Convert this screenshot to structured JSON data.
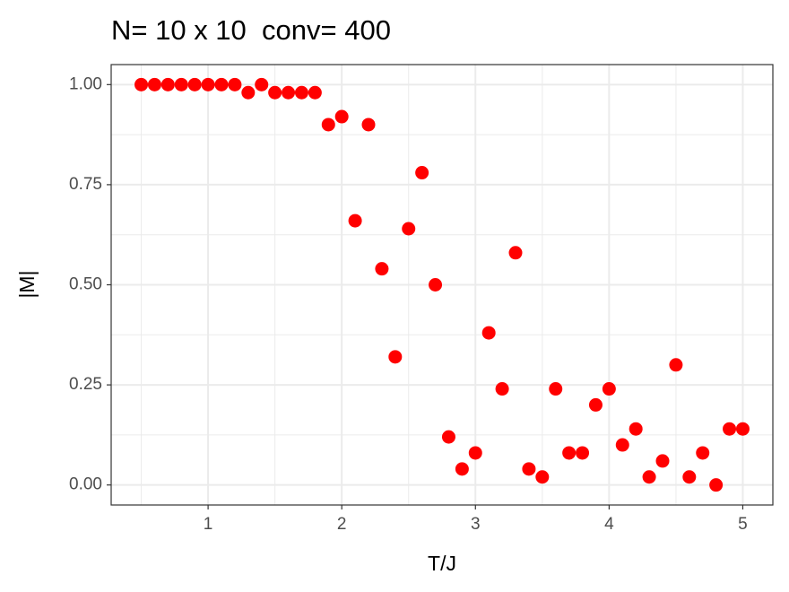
{
  "chart_data": {
    "type": "scatter",
    "title": "N= 10 x 10  conv= 400",
    "x_label": "T/J",
    "y_label": "|M|",
    "x": [
      0.5,
      0.6,
      0.7,
      0.8,
      0.9,
      1.0,
      1.1,
      1.2,
      1.3,
      1.4,
      1.5,
      1.6,
      1.7,
      1.8,
      1.9,
      2.0,
      2.1,
      2.2,
      2.3,
      2.4,
      2.5,
      2.6,
      2.7,
      2.8,
      2.9,
      3.0,
      3.1,
      3.2,
      3.3,
      3.4,
      3.5,
      3.6,
      3.7,
      3.8,
      3.9,
      4.0,
      4.1,
      4.2,
      4.3,
      4.4,
      4.5,
      4.6,
      4.7,
      4.8,
      4.9,
      5.0
    ],
    "values": [
      1.0,
      1.0,
      1.0,
      1.0,
      1.0,
      1.0,
      1.0,
      1.0,
      0.98,
      1.0,
      0.98,
      0.98,
      0.98,
      0.98,
      0.9,
      0.92,
      0.66,
      0.9,
      0.54,
      0.32,
      0.64,
      0.78,
      0.5,
      0.12,
      0.04,
      0.08,
      0.38,
      0.24,
      0.58,
      0.04,
      0.02,
      0.24,
      0.08,
      0.08,
      0.2,
      0.24,
      0.1,
      0.14,
      0.02,
      0.06,
      0.3,
      0.02,
      0.08,
      0.0,
      0.14,
      0.14
    ],
    "color": "#ff0000",
    "xlim": [
      0.275,
      5.225
    ],
    "ylim": [
      -0.05,
      1.05
    ],
    "xticks": [
      1,
      2,
      3,
      4,
      5
    ],
    "yticks": [
      {
        "value": 0,
        "label": "0.00"
      },
      {
        "value": 0.25,
        "label": "0.25"
      },
      {
        "value": 0.5,
        "label": "0.50"
      },
      {
        "value": 0.75,
        "label": "0.75"
      },
      {
        "value": 1,
        "label": "1.00"
      }
    ],
    "grid": true
  }
}
